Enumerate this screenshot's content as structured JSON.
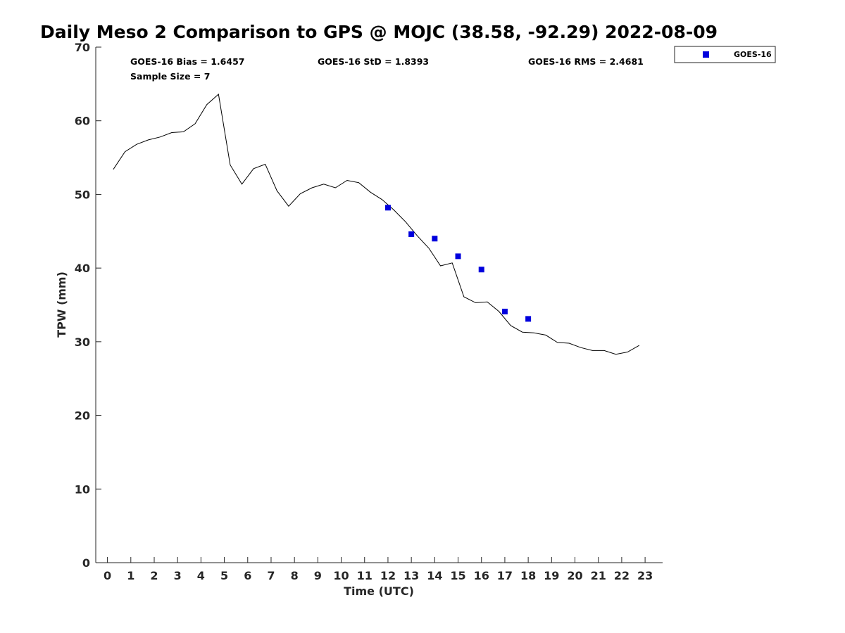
{
  "chart_data": {
    "type": "line",
    "title": "Daily Meso 2 Comparison to GPS @ MOJC (38.58, -92.29) 2022-08-09",
    "xlabel": "Time (UTC)",
    "ylabel": "TPW (mm)",
    "xlim": [
      -0.5,
      23.75
    ],
    "ylim": [
      0,
      70
    ],
    "xticks": [
      0,
      1,
      2,
      3,
      4,
      5,
      6,
      7,
      8,
      9,
      10,
      11,
      12,
      13,
      14,
      15,
      16,
      17,
      18,
      19,
      20,
      21,
      22,
      23
    ],
    "yticks": [
      0,
      10,
      20,
      30,
      40,
      50,
      60,
      70
    ],
    "grid": false,
    "legend_position": "top-right, outside plot",
    "stats": {
      "bias": "GOES-16 Bias = 1.6457",
      "std": "GOES-16 StD = 1.8393",
      "rms": "GOES-16 RMS = 2.4681",
      "sample": "Sample Size = 7"
    },
    "series": [
      {
        "kind": "line",
        "color": "#000000",
        "x": [
          0.25,
          0.75,
          1.25,
          1.75,
          2.25,
          2.75,
          3.25,
          3.75,
          4.25,
          4.75,
          5.25,
          5.75,
          6.25,
          6.75,
          7.25,
          7.75,
          8.25,
          8.75,
          9.25,
          9.75,
          10.25,
          10.75,
          11.25,
          11.75,
          12.25,
          12.75,
          13.25,
          13.75,
          14.25,
          14.75,
          15.25,
          15.75,
          16.25,
          16.75,
          17.25,
          17.75,
          18.25,
          18.75,
          19.25,
          19.75,
          20.25,
          20.75,
          21.25,
          21.75,
          22.25,
          22.75
        ],
        "y": [
          53.4,
          55.8,
          56.8,
          57.4,
          57.8,
          58.4,
          58.5,
          59.6,
          62.2,
          63.6,
          54.0,
          51.4,
          53.5,
          54.1,
          50.5,
          48.4,
          50.1,
          50.9,
          51.4,
          50.9,
          51.9,
          51.6,
          50.3,
          49.3,
          47.9,
          46.3,
          44.4,
          42.7,
          40.3,
          40.7,
          36.1,
          35.3,
          35.4,
          34.1,
          32.2,
          31.3,
          31.2,
          30.9,
          29.9,
          29.8,
          29.2,
          28.8,
          28.8,
          28.3,
          28.6,
          29.5
        ]
      },
      {
        "kind": "scatter",
        "name": "GOES-16",
        "color": "#0000dd",
        "x": [
          12,
          13,
          14,
          15,
          16,
          17,
          18
        ],
        "y": [
          48.2,
          44.6,
          44.0,
          41.6,
          39.8,
          34.1,
          33.1
        ]
      }
    ]
  }
}
